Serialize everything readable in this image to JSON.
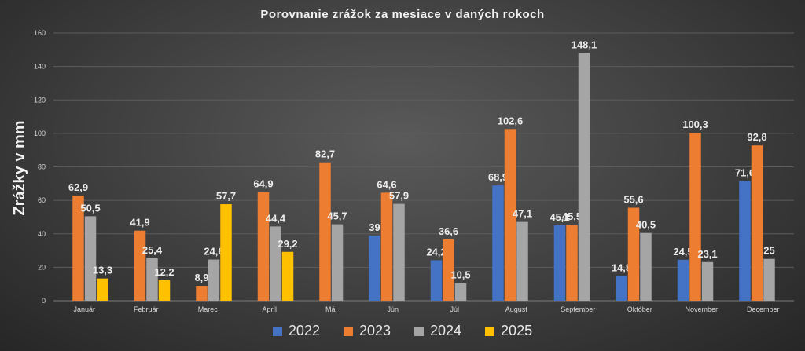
{
  "chart_data": {
    "type": "bar",
    "title": "Porovnanie zrážok za mesiace v daných rokoch",
    "ylabel": "Zrážky v mm",
    "xlabel": "",
    "ylim": [
      0,
      160
    ],
    "yticks": [
      0,
      20,
      40,
      60,
      80,
      100,
      120,
      140,
      160
    ],
    "grid": true,
    "legend_position": "bottom",
    "categories": [
      "Január",
      "Február",
      "Marec",
      "Apríl",
      "Máj",
      "Jún",
      "Júl",
      "August",
      "September",
      "Október",
      "November",
      "December"
    ],
    "series": [
      {
        "name": "2022",
        "color": "#4472c4",
        "values": [
          null,
          null,
          null,
          null,
          null,
          39,
          24.2,
          68.9,
          45.1,
          14.8,
          24.5,
          71.6
        ]
      },
      {
        "name": "2023",
        "color": "#ed7d31",
        "values": [
          62.9,
          41.9,
          8.9,
          64.9,
          82.7,
          64.6,
          36.6,
          102.6,
          45.5,
          55.6,
          100.3,
          92.8
        ]
      },
      {
        "name": "2024",
        "color": "#a5a5a5",
        "values": [
          50.5,
          25.4,
          24.6,
          44.4,
          45.7,
          57.9,
          10.5,
          47.1,
          148.1,
          40.5,
          23.1,
          25
        ]
      },
      {
        "name": "2025",
        "color": "#ffc000",
        "values": [
          13.3,
          12.2,
          57.7,
          29.2,
          null,
          null,
          null,
          null,
          null,
          null,
          null,
          null
        ]
      }
    ]
  }
}
